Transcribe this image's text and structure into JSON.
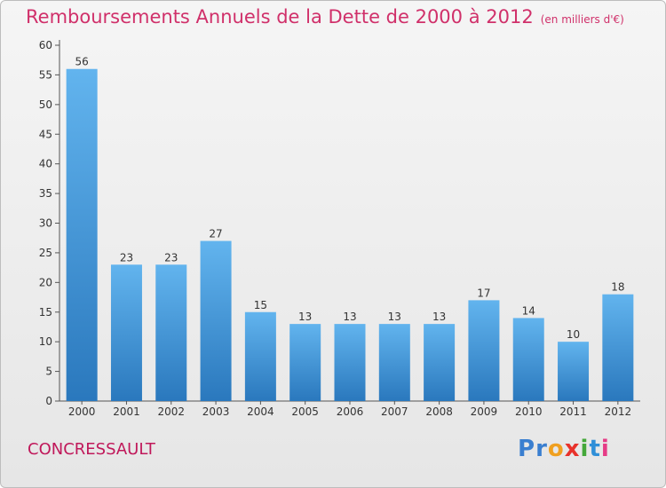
{
  "header": {
    "title": "Remboursements Annuels de la Dette de 2000 à 2012",
    "subtitle": "(en milliers d'€)"
  },
  "footer": {
    "city": "CONCRESSAULT",
    "logo_letters": [
      "P",
      "r",
      "o",
      "x",
      "i",
      "t",
      "i"
    ]
  },
  "colors": {
    "title": "#d0306a",
    "bar_top": "#62b4ee",
    "bar_bottom": "#2a78bd",
    "logo": [
      "#3a7fd0",
      "#3a7fd0",
      "#f0a020",
      "#e8322b",
      "#44a83a",
      "#2f8fd8",
      "#e63b86"
    ]
  },
  "chart_data": {
    "type": "bar",
    "categories": [
      "2000",
      "2001",
      "2002",
      "2003",
      "2004",
      "2005",
      "2006",
      "2007",
      "2008",
      "2009",
      "2010",
      "2011",
      "2012"
    ],
    "values": [
      56,
      23,
      23,
      27,
      15,
      13,
      13,
      13,
      13,
      17,
      14,
      10,
      18
    ],
    "title": "Remboursements Annuels de la Dette de 2000 à 2012",
    "ylim": [
      0,
      60
    ],
    "yticks": [
      0,
      5,
      10,
      15,
      20,
      25,
      30,
      35,
      40,
      45,
      50,
      55,
      60
    ],
    "grid": false,
    "data_labels": true
  }
}
